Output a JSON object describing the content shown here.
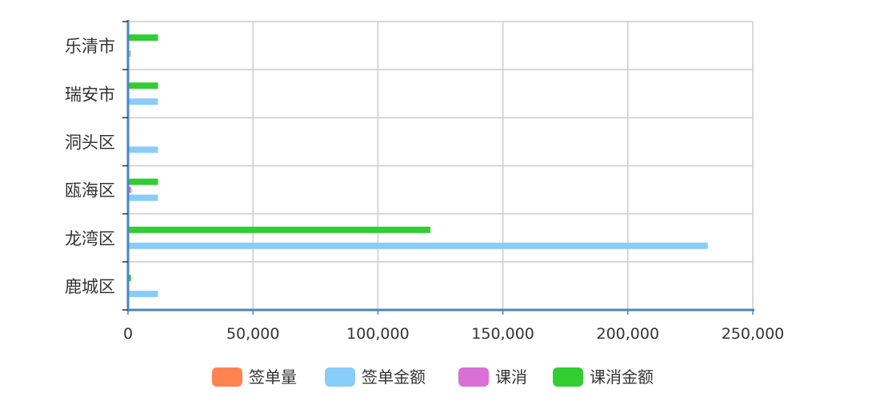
{
  "chart_data": {
    "type": "bar",
    "orientation": "horizontal",
    "categories": [
      "鹿城区",
      "龙湾区",
      "瓯海区",
      "洞头区",
      "瑞安市",
      "乐清市"
    ],
    "series": [
      {
        "name": "签单量",
        "color": "#ff8251",
        "values": [
          0,
          0,
          0,
          0,
          0,
          0
        ]
      },
      {
        "name": "签单金额",
        "color": "#88ccfa",
        "values": [
          12000,
          232000,
          12000,
          12000,
          12000,
          1200
        ]
      },
      {
        "name": "课消",
        "color": "#da70d6",
        "values": [
          0,
          0,
          1200,
          0,
          0,
          0
        ]
      },
      {
        "name": "课消金额",
        "color": "#32cd32",
        "values": [
          1200,
          121000,
          12000,
          0,
          12000,
          12000
        ]
      }
    ],
    "xlim": [
      0,
      250000
    ],
    "xticks": [
      "0",
      "50,000",
      "100,000",
      "150,000",
      "200,000",
      "250,000"
    ],
    "grid": true,
    "legend_position": "bottom"
  }
}
